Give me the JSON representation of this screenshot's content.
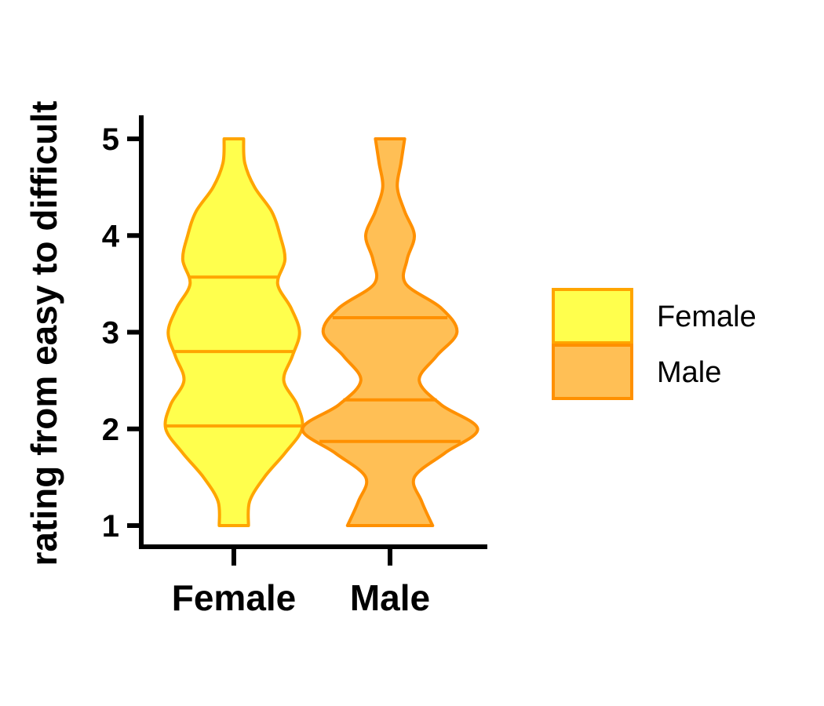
{
  "chart_data": {
    "type": "violin",
    "ylabel": "rating from easy to difficult",
    "xlabel": "",
    "ylim": [
      1,
      5
    ],
    "yticks": [
      1,
      2,
      3,
      4,
      5
    ],
    "categories": [
      "Female",
      "Male"
    ],
    "legend": {
      "position": "right",
      "entries": [
        "Female",
        "Male"
      ]
    },
    "grid": false,
    "series": [
      {
        "name": "Female",
        "fill": "#ffff4d",
        "stroke": "#ffa500",
        "quartiles": [
          2.03,
          2.8,
          3.57
        ],
        "density": [
          [
            1.0,
            0.12
          ],
          [
            1.25,
            0.13
          ],
          [
            1.5,
            0.25
          ],
          [
            1.75,
            0.42
          ],
          [
            2.0,
            0.56
          ],
          [
            2.25,
            0.52
          ],
          [
            2.5,
            0.41
          ],
          [
            2.75,
            0.48
          ],
          [
            3.0,
            0.54
          ],
          [
            3.25,
            0.47
          ],
          [
            3.5,
            0.36
          ],
          [
            3.75,
            0.42
          ],
          [
            4.0,
            0.38
          ],
          [
            4.25,
            0.31
          ],
          [
            4.5,
            0.17
          ],
          [
            4.75,
            0.09
          ],
          [
            5.0,
            0.08
          ]
        ]
      },
      {
        "name": "Male",
        "fill": "#ffbf55",
        "stroke": "#ff9000",
        "quartiles": [
          1.87,
          2.3,
          3.15
        ],
        "density": [
          [
            1.0,
            0.35
          ],
          [
            1.25,
            0.26
          ],
          [
            1.5,
            0.2
          ],
          [
            1.75,
            0.45
          ],
          [
            2.0,
            0.72
          ],
          [
            2.25,
            0.42
          ],
          [
            2.5,
            0.24
          ],
          [
            2.75,
            0.38
          ],
          [
            3.0,
            0.55
          ],
          [
            3.25,
            0.42
          ],
          [
            3.5,
            0.13
          ],
          [
            3.75,
            0.14
          ],
          [
            4.0,
            0.2
          ],
          [
            4.25,
            0.12
          ],
          [
            4.5,
            0.06
          ],
          [
            4.75,
            0.09
          ],
          [
            5.0,
            0.12
          ]
        ]
      }
    ]
  }
}
